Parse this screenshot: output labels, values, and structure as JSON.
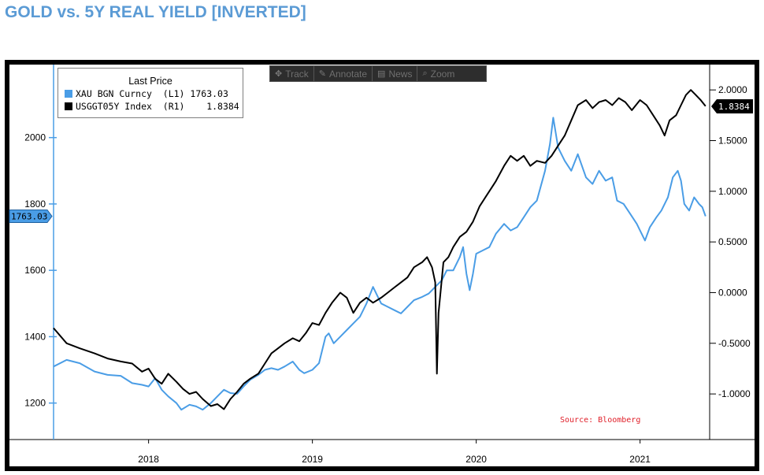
{
  "page": {
    "title": "GOLD vs. 5Y REAL YIELD [INVERTED]"
  },
  "toolbar": {
    "items": [
      {
        "label": "Track",
        "icon": "move-icon"
      },
      {
        "label": "Annotate",
        "icon": "pencil-icon"
      },
      {
        "label": "News",
        "icon": "news-icon"
      },
      {
        "label": "Zoom",
        "icon": "magnifier-icon"
      }
    ]
  },
  "legend": {
    "title": "Last Price",
    "entries": [
      {
        "name": "XAU BGN Curncy  (L1)",
        "value": "1763.03",
        "color": "#4a9de6"
      },
      {
        "name": "USGGT05Y Index  (R1)",
        "value": "1.8384",
        "color": "#000000"
      }
    ]
  },
  "source": "Source: Bloomberg",
  "chart_data": {
    "type": "line",
    "title": "GOLD vs. 5Y REAL YIELD [INVERTED]",
    "x_tick_labels": [
      "2018",
      "2019",
      "2020",
      "2021"
    ],
    "left_axis": {
      "series": "XAU BGN Curncy",
      "ticks": [
        "1200",
        "1400",
        "1600",
        "1800",
        "2000"
      ],
      "tick_values": [
        1200,
        1400,
        1600,
        1800,
        2000
      ],
      "range": [
        1090,
        2220
      ],
      "last_value_label": "1763.03",
      "last_value": 1763.03
    },
    "right_axis": {
      "series": "USGGT05Y Index",
      "inverted": true,
      "ticks": [
        "2.0000",
        "1.5000",
        "1.0000",
        "0.5000",
        "0.0000",
        "-0.5000",
        "-1.0000"
      ],
      "tick_values": [
        2.0,
        1.5,
        1.0,
        0.5,
        0.0,
        -0.5,
        -1.0
      ],
      "range": [
        -1.45,
        2.25
      ],
      "last_value_label": "1.8384",
      "last_value": 1.8384
    },
    "x_range": [
      2017.42,
      2021.42
    ],
    "series": [
      {
        "name": "XAU BGN Curncy (L1)",
        "axis": "left",
        "color": "#4a9de6",
        "points": [
          [
            2017.42,
            1310
          ],
          [
            2017.5,
            1330
          ],
          [
            2017.58,
            1320
          ],
          [
            2017.67,
            1295
          ],
          [
            2017.75,
            1285
          ],
          [
            2017.83,
            1282
          ],
          [
            2017.9,
            1260
          ],
          [
            2017.96,
            1255
          ],
          [
            2018.0,
            1250
          ],
          [
            2018.04,
            1275
          ],
          [
            2018.08,
            1240
          ],
          [
            2018.12,
            1220
          ],
          [
            2018.17,
            1200
          ],
          [
            2018.2,
            1180
          ],
          [
            2018.25,
            1195
          ],
          [
            2018.29,
            1190
          ],
          [
            2018.33,
            1180
          ],
          [
            2018.38,
            1200
          ],
          [
            2018.42,
            1220
          ],
          [
            2018.46,
            1240
          ],
          [
            2018.5,
            1230
          ],
          [
            2018.54,
            1228
          ],
          [
            2018.58,
            1250
          ],
          [
            2018.62,
            1270
          ],
          [
            2018.67,
            1285
          ],
          [
            2018.71,
            1300
          ],
          [
            2018.75,
            1305
          ],
          [
            2018.79,
            1300
          ],
          [
            2018.83,
            1310
          ],
          [
            2018.88,
            1325
          ],
          [
            2018.92,
            1300
          ],
          [
            2018.95,
            1290
          ],
          [
            2019.0,
            1300
          ],
          [
            2019.04,
            1320
          ],
          [
            2019.08,
            1400
          ],
          [
            2019.1,
            1410
          ],
          [
            2019.13,
            1380
          ],
          [
            2019.17,
            1400
          ],
          [
            2019.21,
            1420
          ],
          [
            2019.25,
            1440
          ],
          [
            2019.29,
            1460
          ],
          [
            2019.33,
            1500
          ],
          [
            2019.37,
            1550
          ],
          [
            2019.4,
            1520
          ],
          [
            2019.42,
            1500
          ],
          [
            2019.46,
            1490
          ],
          [
            2019.5,
            1480
          ],
          [
            2019.54,
            1470
          ],
          [
            2019.58,
            1490
          ],
          [
            2019.62,
            1510
          ],
          [
            2019.67,
            1520
          ],
          [
            2019.71,
            1530
          ],
          [
            2019.75,
            1550
          ],
          [
            2019.79,
            1570
          ],
          [
            2019.82,
            1600
          ],
          [
            2019.86,
            1600
          ],
          [
            2019.9,
            1640
          ],
          [
            2019.92,
            1670
          ],
          [
            2019.94,
            1590
          ],
          [
            2019.96,
            1540
          ],
          [
            2019.98,
            1590
          ],
          [
            2020.0,
            1650
          ],
          [
            2020.04,
            1660
          ],
          [
            2020.08,
            1670
          ],
          [
            2020.12,
            1710
          ],
          [
            2020.17,
            1740
          ],
          [
            2020.21,
            1720
          ],
          [
            2020.25,
            1730
          ],
          [
            2020.29,
            1760
          ],
          [
            2020.33,
            1790
          ],
          [
            2020.37,
            1810
          ],
          [
            2020.42,
            1900
          ],
          [
            2020.45,
            1980
          ],
          [
            2020.47,
            2060
          ],
          [
            2020.5,
            1970
          ],
          [
            2020.54,
            1930
          ],
          [
            2020.58,
            1900
          ],
          [
            2020.62,
            1950
          ],
          [
            2020.67,
            1880
          ],
          [
            2020.71,
            1860
          ],
          [
            2020.75,
            1900
          ],
          [
            2020.79,
            1870
          ],
          [
            2020.83,
            1880
          ],
          [
            2020.86,
            1810
          ],
          [
            2020.9,
            1800
          ],
          [
            2020.94,
            1770
          ],
          [
            2020.98,
            1740
          ],
          [
            2021.0,
            1720
          ],
          [
            2021.03,
            1690
          ],
          [
            2021.06,
            1730
          ],
          [
            2021.1,
            1760
          ],
          [
            2021.13,
            1780
          ],
          [
            2021.17,
            1820
          ],
          [
            2021.2,
            1880
          ],
          [
            2021.23,
            1900
          ],
          [
            2021.25,
            1870
          ],
          [
            2021.27,
            1800
          ],
          [
            2021.3,
            1780
          ],
          [
            2021.33,
            1820
          ],
          [
            2021.36,
            1800
          ],
          [
            2021.38,
            1790
          ],
          [
            2021.4,
            1763
          ]
        ]
      },
      {
        "name": "USGGT05Y Index (R1)",
        "axis": "right",
        "color": "#000000",
        "points": [
          [
            2017.42,
            -0.35
          ],
          [
            2017.5,
            -0.5
          ],
          [
            2017.58,
            -0.55
          ],
          [
            2017.67,
            -0.6
          ],
          [
            2017.75,
            -0.65
          ],
          [
            2017.83,
            -0.68
          ],
          [
            2017.9,
            -0.7
          ],
          [
            2017.96,
            -0.78
          ],
          [
            2018.0,
            -0.75
          ],
          [
            2018.04,
            -0.85
          ],
          [
            2018.08,
            -0.9
          ],
          [
            2018.12,
            -0.8
          ],
          [
            2018.17,
            -0.88
          ],
          [
            2018.21,
            -0.95
          ],
          [
            2018.25,
            -1.0
          ],
          [
            2018.29,
            -0.98
          ],
          [
            2018.33,
            -1.05
          ],
          [
            2018.38,
            -1.12
          ],
          [
            2018.42,
            -1.1
          ],
          [
            2018.46,
            -1.15
          ],
          [
            2018.5,
            -1.05
          ],
          [
            2018.54,
            -0.98
          ],
          [
            2018.58,
            -0.9
          ],
          [
            2018.62,
            -0.85
          ],
          [
            2018.67,
            -0.8
          ],
          [
            2018.71,
            -0.7
          ],
          [
            2018.75,
            -0.6
          ],
          [
            2018.79,
            -0.55
          ],
          [
            2018.83,
            -0.5
          ],
          [
            2018.88,
            -0.45
          ],
          [
            2018.92,
            -0.48
          ],
          [
            2018.96,
            -0.4
          ],
          [
            2019.0,
            -0.3
          ],
          [
            2019.04,
            -0.32
          ],
          [
            2019.08,
            -0.2
          ],
          [
            2019.12,
            -0.1
          ],
          [
            2019.17,
            0.0
          ],
          [
            2019.21,
            -0.05
          ],
          [
            2019.25,
            -0.2
          ],
          [
            2019.29,
            -0.1
          ],
          [
            2019.33,
            -0.05
          ],
          [
            2019.37,
            -0.1
          ],
          [
            2019.42,
            -0.05
          ],
          [
            2019.46,
            0.0
          ],
          [
            2019.5,
            0.05
          ],
          [
            2019.54,
            0.1
          ],
          [
            2019.58,
            0.15
          ],
          [
            2019.62,
            0.25
          ],
          [
            2019.67,
            0.3
          ],
          [
            2019.7,
            0.35
          ],
          [
            2019.73,
            0.25
          ],
          [
            2019.75,
            0.1
          ],
          [
            2019.76,
            -0.8
          ],
          [
            2019.77,
            -0.2
          ],
          [
            2019.8,
            0.3
          ],
          [
            2019.83,
            0.35
          ],
          [
            2019.86,
            0.45
          ],
          [
            2019.9,
            0.55
          ],
          [
            2019.94,
            0.6
          ],
          [
            2019.98,
            0.7
          ],
          [
            2020.02,
            0.85
          ],
          [
            2020.06,
            0.95
          ],
          [
            2020.1,
            1.05
          ],
          [
            2020.12,
            1.1
          ],
          [
            2020.17,
            1.25
          ],
          [
            2020.21,
            1.35
          ],
          [
            2020.25,
            1.3
          ],
          [
            2020.29,
            1.35
          ],
          [
            2020.33,
            1.25
          ],
          [
            2020.37,
            1.3
          ],
          [
            2020.42,
            1.28
          ],
          [
            2020.46,
            1.35
          ],
          [
            2020.5,
            1.45
          ],
          [
            2020.54,
            1.55
          ],
          [
            2020.58,
            1.7
          ],
          [
            2020.62,
            1.85
          ],
          [
            2020.67,
            1.9
          ],
          [
            2020.71,
            1.82
          ],
          [
            2020.75,
            1.88
          ],
          [
            2020.79,
            1.9
          ],
          [
            2020.83,
            1.85
          ],
          [
            2020.87,
            1.92
          ],
          [
            2020.91,
            1.88
          ],
          [
            2020.95,
            1.8
          ],
          [
            2021.0,
            1.9
          ],
          [
            2021.04,
            1.85
          ],
          [
            2021.08,
            1.75
          ],
          [
            2021.12,
            1.65
          ],
          [
            2021.15,
            1.55
          ],
          [
            2021.18,
            1.7
          ],
          [
            2021.22,
            1.75
          ],
          [
            2021.25,
            1.85
          ],
          [
            2021.28,
            1.95
          ],
          [
            2021.31,
            2.0
          ],
          [
            2021.34,
            1.95
          ],
          [
            2021.37,
            1.9
          ],
          [
            2021.4,
            1.84
          ]
        ]
      }
    ]
  }
}
